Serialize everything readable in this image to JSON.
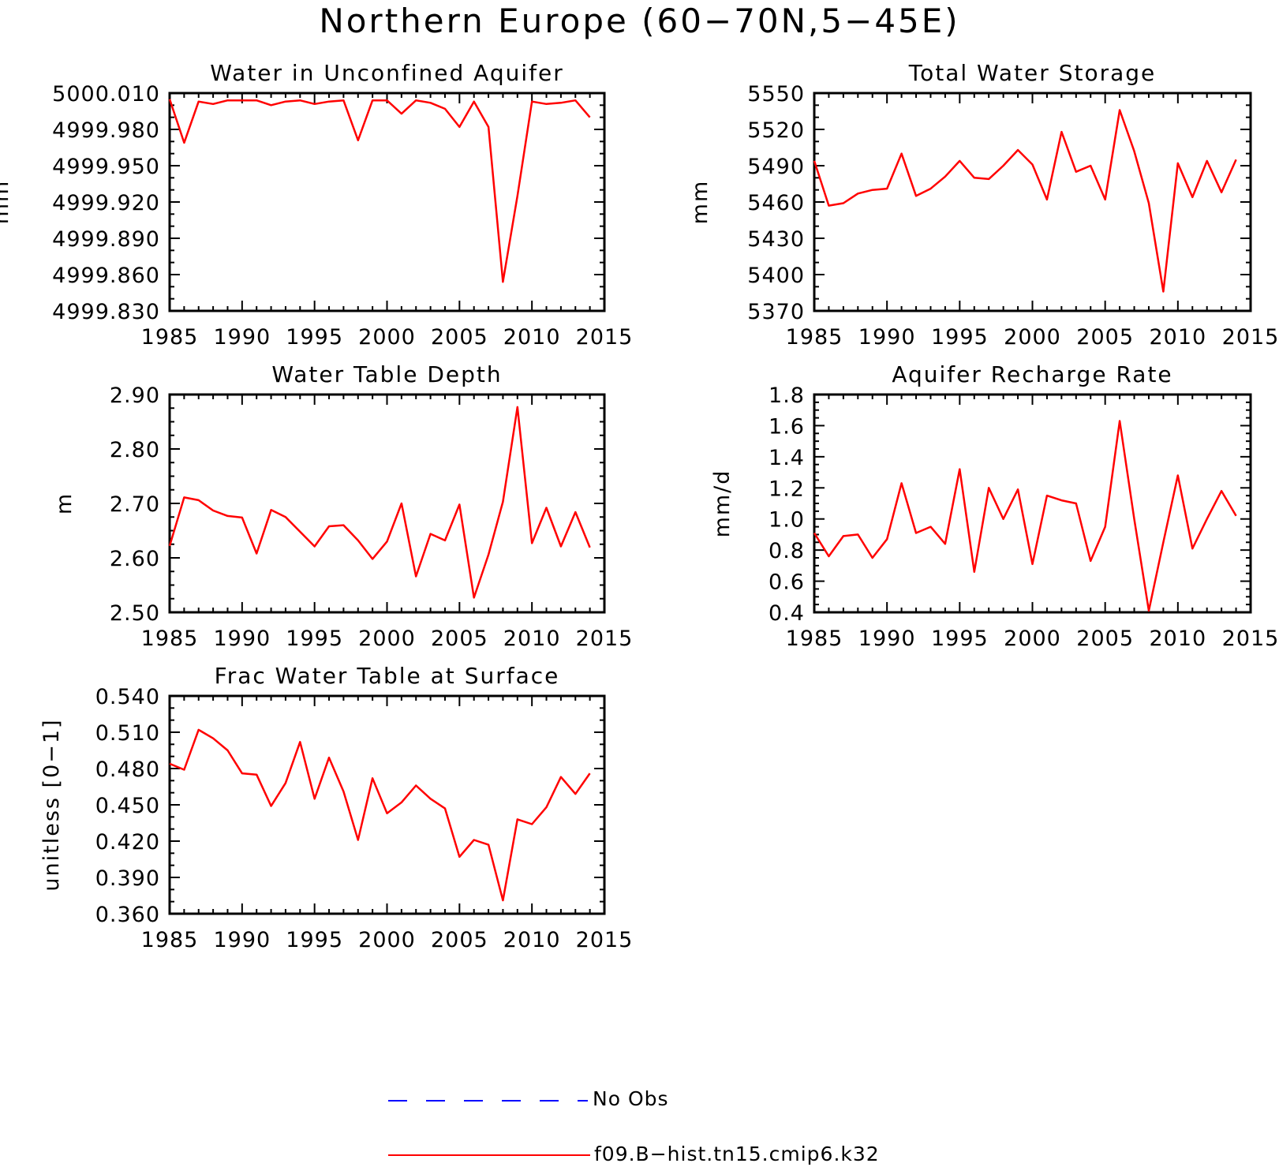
{
  "figure": {
    "title": "Northern Europe (60−70N,5−45E)"
  },
  "colors": {
    "model_line": "#ff0000",
    "obs_line": "#0000ff",
    "axes": "#000000"
  },
  "legend": {
    "obs_label": "No Obs",
    "model_label": "f09.B−hist.tn15.cmip6.k32"
  },
  "chart_data": [
    {
      "type": "line",
      "title": "Water in Unconfined Aquifer",
      "xlabel": "",
      "ylabel": "mm",
      "xlim": [
        1985,
        2015
      ],
      "ylim": [
        4999.83,
        5000.01
      ],
      "x_ticks": [
        1985,
        1990,
        1995,
        2000,
        2005,
        2010,
        2015
      ],
      "y_ticks": [
        "4999.830",
        "4999.860",
        "4999.890",
        "4999.920",
        "4999.950",
        "4999.980",
        "5000.010"
      ],
      "y_tick_values": [
        4999.83,
        4999.86,
        4999.89,
        4999.92,
        4999.95,
        4999.98,
        5000.01
      ],
      "grid": false,
      "series": [
        {
          "x": [
            1985,
            1986,
            1987,
            1988,
            1989,
            1990,
            1991,
            1992,
            1993,
            1994,
            1995,
            1996,
            1997,
            1998,
            1999,
            2000,
            2001,
            2002,
            2003,
            2004,
            2005,
            2006,
            2007,
            2008,
            2009,
            2010,
            2011,
            2012,
            2013,
            2014
          ],
          "values": [
            5000.005,
            4999.969,
            5000.003,
            5000.001,
            5000.004,
            5000.004,
            5000.004,
            5000.0,
            5000.003,
            5000.004,
            5000.001,
            5000.003,
            5000.004,
            4999.971,
            5000.004,
            5000.004,
            4999.993,
            5000.004,
            5000.002,
            4999.997,
            4999.982,
            5000.003,
            4999.982,
            4999.854,
            4999.925,
            5000.003,
            5000.001,
            5000.002,
            5000.004,
            4999.99
          ]
        }
      ]
    },
    {
      "type": "line",
      "title": "Total Water Storage",
      "xlabel": "",
      "ylabel": "mm",
      "xlim": [
        1985,
        2015
      ],
      "ylim": [
        5370,
        5550
      ],
      "x_ticks": [
        1985,
        1990,
        1995,
        2000,
        2005,
        2010,
        2015
      ],
      "y_ticks": [
        "5370",
        "5400",
        "5430",
        "5460",
        "5490",
        "5520",
        "5550"
      ],
      "y_tick_values": [
        5370,
        5400,
        5430,
        5460,
        5490,
        5520,
        5550
      ],
      "grid": false,
      "series": [
        {
          "x": [
            1985,
            1986,
            1987,
            1988,
            1989,
            1990,
            1991,
            1992,
            1993,
            1994,
            1995,
            1996,
            1997,
            1998,
            1999,
            2000,
            2001,
            2002,
            2003,
            2004,
            2005,
            2006,
            2007,
            2008,
            2009,
            2010,
            2011,
            2012,
            2013,
            2014
          ],
          "values": [
            5494,
            5457,
            5459,
            5467,
            5470,
            5471,
            5500,
            5465,
            5471,
            5481,
            5494,
            5480,
            5479,
            5490,
            5503,
            5491,
            5462,
            5518,
            5485,
            5490,
            5462,
            5536,
            5502,
            5459,
            5386,
            5492,
            5464,
            5494,
            5468,
            5495
          ]
        }
      ]
    },
    {
      "type": "line",
      "title": "Water Table Depth",
      "xlabel": "",
      "ylabel": "m",
      "xlim": [
        1985,
        2015
      ],
      "ylim": [
        2.5,
        2.9
      ],
      "x_ticks": [
        1985,
        1990,
        1995,
        2000,
        2005,
        2010,
        2015
      ],
      "y_ticks": [
        "2.50",
        "2.60",
        "2.70",
        "2.80",
        "2.90"
      ],
      "y_tick_values": [
        2.5,
        2.6,
        2.7,
        2.8,
        2.9
      ],
      "grid": false,
      "series": [
        {
          "x": [
            1985,
            1986,
            1987,
            1988,
            1989,
            1990,
            1991,
            1992,
            1993,
            1994,
            1995,
            1996,
            1997,
            1998,
            1999,
            2000,
            2001,
            2002,
            2003,
            2004,
            2005,
            2006,
            2007,
            2008,
            2009,
            2010,
            2011,
            2012,
            2013,
            2014
          ],
          "values": [
            2.622,
            2.711,
            2.706,
            2.687,
            2.677,
            2.674,
            2.608,
            2.688,
            2.675,
            2.648,
            2.621,
            2.658,
            2.66,
            2.632,
            2.598,
            2.63,
            2.7,
            2.566,
            2.644,
            2.632,
            2.698,
            2.527,
            2.606,
            2.703,
            2.877,
            2.627,
            2.692,
            2.621,
            2.684,
            2.619
          ]
        }
      ]
    },
    {
      "type": "line",
      "title": "Aquifer Recharge Rate",
      "xlabel": "",
      "ylabel": "mm/d",
      "xlim": [
        1985,
        2015
      ],
      "ylim": [
        0.4,
        1.8
      ],
      "x_ticks": [
        1985,
        1990,
        1995,
        2000,
        2005,
        2010,
        2015
      ],
      "y_ticks": [
        "0.4",
        "0.6",
        "0.8",
        "1.0",
        "1.2",
        "1.4",
        "1.6",
        "1.8"
      ],
      "y_tick_values": [
        0.4,
        0.6,
        0.8,
        1.0,
        1.2,
        1.4,
        1.6,
        1.8
      ],
      "grid": false,
      "series": [
        {
          "x": [
            1985,
            1986,
            1987,
            1988,
            1989,
            1990,
            1991,
            1992,
            1993,
            1994,
            1995,
            1996,
            1997,
            1998,
            1999,
            2000,
            2001,
            2002,
            2003,
            2004,
            2005,
            2006,
            2007,
            2008,
            2009,
            2010,
            2011,
            2012,
            2013,
            2014
          ],
          "values": [
            0.91,
            0.76,
            0.89,
            0.9,
            0.75,
            0.87,
            1.23,
            0.91,
            0.95,
            0.84,
            1.32,
            0.66,
            1.2,
            1.0,
            1.19,
            0.71,
            1.15,
            1.12,
            1.1,
            0.73,
            0.95,
            1.63,
            1.0,
            0.41,
            0.85,
            1.28,
            0.81,
            1.0,
            1.18,
            1.02
          ]
        }
      ]
    },
    {
      "type": "line",
      "title": "Frac Water Table at Surface",
      "xlabel": "",
      "ylabel": "unitless [0−1]",
      "xlim": [
        1985,
        2015
      ],
      "ylim": [
        0.36,
        0.54
      ],
      "x_ticks": [
        1985,
        1990,
        1995,
        2000,
        2005,
        2010,
        2015
      ],
      "y_ticks": [
        "0.360",
        "0.390",
        "0.420",
        "0.450",
        "0.480",
        "0.510",
        "0.540"
      ],
      "y_tick_values": [
        0.36,
        0.39,
        0.42,
        0.45,
        0.48,
        0.51,
        0.54
      ],
      "grid": false,
      "series": [
        {
          "x": [
            1985,
            1986,
            1987,
            1988,
            1989,
            1990,
            1991,
            1992,
            1993,
            1994,
            1995,
            1996,
            1997,
            1998,
            1999,
            2000,
            2001,
            2002,
            2003,
            2004,
            2005,
            2006,
            2007,
            2008,
            2009,
            2010,
            2011,
            2012,
            2013,
            2014
          ],
          "values": [
            0.484,
            0.479,
            0.512,
            0.505,
            0.495,
            0.476,
            0.475,
            0.449,
            0.468,
            0.502,
            0.455,
            0.489,
            0.461,
            0.421,
            0.472,
            0.443,
            0.452,
            0.466,
            0.455,
            0.447,
            0.407,
            0.421,
            0.417,
            0.371,
            0.438,
            0.434,
            0.448,
            0.473,
            0.459,
            0.476
          ]
        }
      ]
    }
  ]
}
